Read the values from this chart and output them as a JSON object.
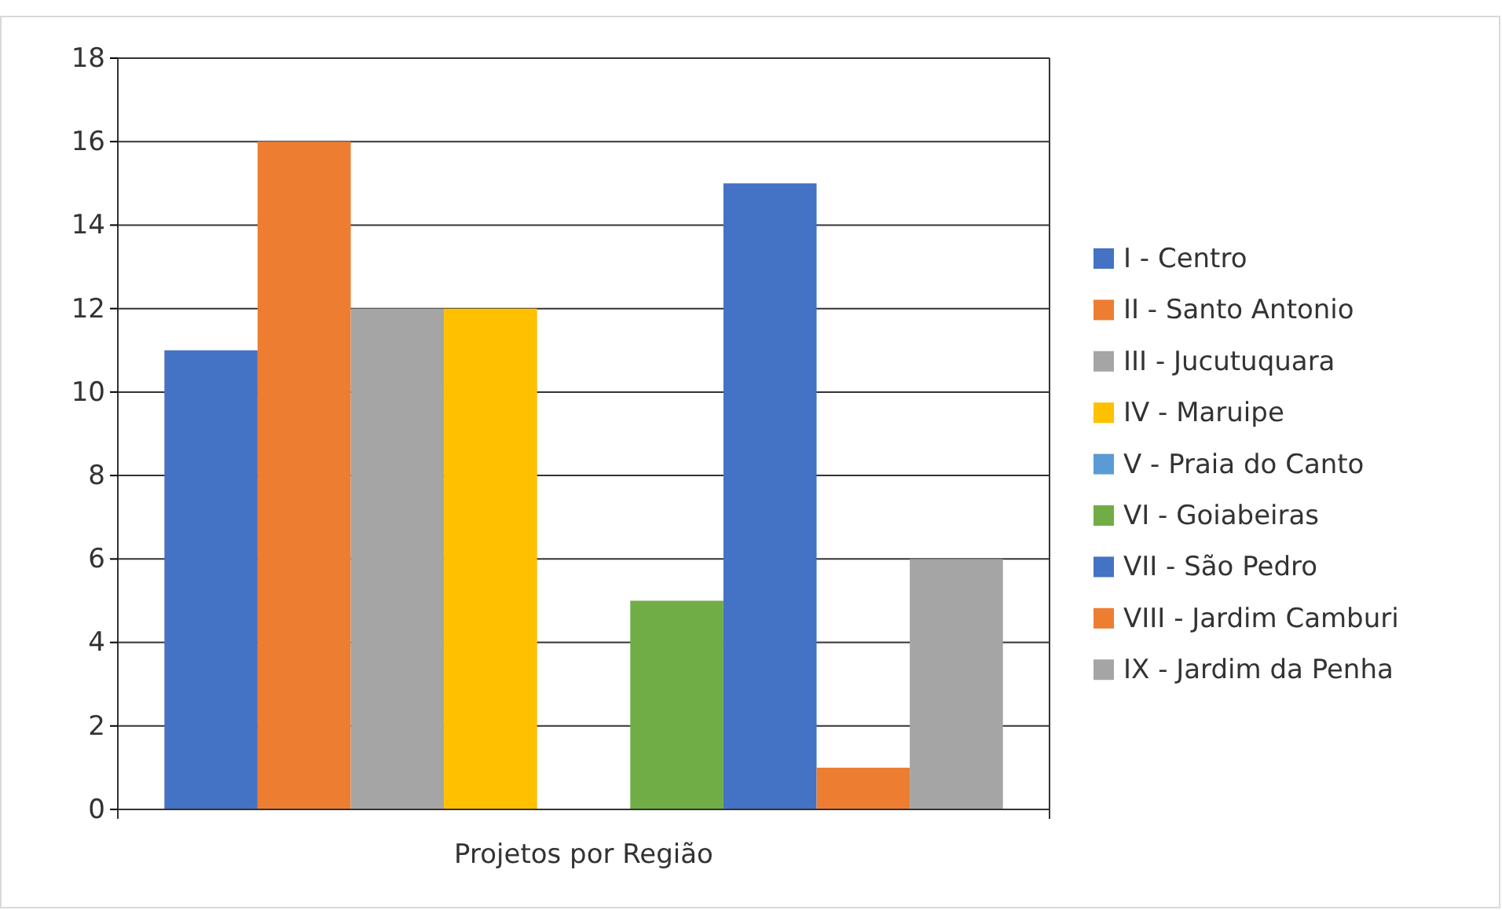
{
  "chart_data": {
    "type": "bar",
    "categories": [
      "Projetos por Região"
    ],
    "series": [
      {
        "name": "I - Centro",
        "color": "#4472c4",
        "values": [
          11
        ]
      },
      {
        "name": "II - Santo Antonio",
        "color": "#ed7d31",
        "values": [
          16
        ]
      },
      {
        "name": "III - Jucutuquara",
        "color": "#a5a5a5",
        "values": [
          12
        ]
      },
      {
        "name": "IV - Maruipe",
        "color": "#ffc000",
        "values": [
          12
        ]
      },
      {
        "name": "V - Praia do Canto",
        "color": "#5b9bd5",
        "values": [
          0
        ]
      },
      {
        "name": "VI - Goiabeiras",
        "color": "#70ad47",
        "values": [
          5
        ]
      },
      {
        "name": "VII - São Pedro",
        "color": "#4472c4",
        "values": [
          15
        ]
      },
      {
        "name": "VIII - Jardim Camburi",
        "color": "#ed7d31",
        "values": [
          1
        ]
      },
      {
        "name": "IX - Jardim da Penha",
        "color": "#a5a5a5",
        "values": [
          6
        ]
      }
    ],
    "ylim": [
      0,
      18
    ],
    "yticks": [
      0,
      2,
      4,
      6,
      8,
      10,
      12,
      14,
      16,
      18
    ],
    "grid": "y",
    "legend": "right"
  }
}
